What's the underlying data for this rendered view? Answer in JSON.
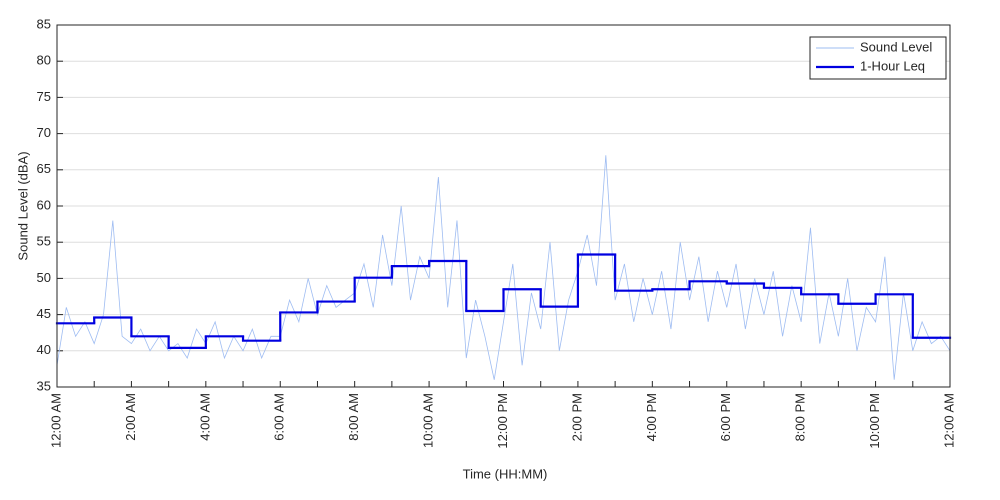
{
  "chart_data": {
    "type": "line",
    "xlabel": "Time (HH:MM)",
    "ylabel": "Sound Level (dBA)",
    "xlim": [
      0,
      24
    ],
    "ylim": [
      35,
      85
    ],
    "xticks": [
      {
        "value": 0,
        "label": "12:00 AM"
      },
      {
        "value": 1,
        "label": null
      },
      {
        "value": 2,
        "label": "2:00 AM"
      },
      {
        "value": 3,
        "label": null
      },
      {
        "value": 4,
        "label": "4:00 AM"
      },
      {
        "value": 5,
        "label": null
      },
      {
        "value": 6,
        "label": "6:00 AM"
      },
      {
        "value": 7,
        "label": null
      },
      {
        "value": 8,
        "label": "8:00 AM"
      },
      {
        "value": 9,
        "label": null
      },
      {
        "value": 10,
        "label": "10:00 AM"
      },
      {
        "value": 11,
        "label": null
      },
      {
        "value": 12,
        "label": "12:00 PM"
      },
      {
        "value": 13,
        "label": null
      },
      {
        "value": 14,
        "label": "2:00 PM"
      },
      {
        "value": 15,
        "label": null
      },
      {
        "value": 16,
        "label": "4:00 PM"
      },
      {
        "value": 17,
        "label": null
      },
      {
        "value": 18,
        "label": "6:00 PM"
      },
      {
        "value": 19,
        "label": null
      },
      {
        "value": 20,
        "label": "8:00 PM"
      },
      {
        "value": 21,
        "label": null
      },
      {
        "value": 22,
        "label": "10:00 PM"
      },
      {
        "value": 23,
        "label": null
      },
      {
        "value": 24,
        "label": "12:00 AM"
      }
    ],
    "yticks": [
      35,
      40,
      45,
      50,
      55,
      60,
      65,
      70,
      75,
      80,
      85
    ],
    "grid": true,
    "legend": "upper right",
    "series": [
      {
        "name": "Sound Level",
        "color": "#9ebcf2",
        "style": "line",
        "x": [
          0,
          0.25,
          0.5,
          0.75,
          1,
          1.25,
          1.5,
          1.75,
          2,
          2.25,
          2.5,
          2.75,
          3,
          3.25,
          3.5,
          3.75,
          4,
          4.25,
          4.5,
          4.75,
          5,
          5.25,
          5.5,
          5.75,
          6,
          6.25,
          6.5,
          6.75,
          7,
          7.25,
          7.5,
          7.75,
          8,
          8.25,
          8.5,
          8.75,
          9,
          9.25,
          9.5,
          9.75,
          10,
          10.25,
          10.5,
          10.75,
          11,
          11.25,
          11.5,
          11.75,
          12,
          12.25,
          12.5,
          12.75,
          13,
          13.25,
          13.5,
          13.75,
          14,
          14.25,
          14.5,
          14.75,
          15,
          15.25,
          15.5,
          15.75,
          16,
          16.25,
          16.5,
          16.75,
          17,
          17.25,
          17.5,
          17.75,
          18,
          18.25,
          18.5,
          18.75,
          19,
          19.25,
          19.5,
          19.75,
          20,
          20.25,
          20.5,
          20.75,
          21,
          21.25,
          21.5,
          21.75,
          22,
          22.25,
          22.5,
          22.75,
          23,
          23.25,
          23.5,
          23.75,
          24
        ],
        "values": [
          38,
          46,
          42,
          44,
          41,
          45,
          58,
          42,
          41,
          43,
          40,
          42,
          40,
          41,
          39,
          43,
          41,
          44,
          39,
          42,
          40,
          43,
          39,
          42,
          42,
          47,
          44,
          50,
          45,
          49,
          46,
          47,
          48,
          52,
          46,
          56,
          49,
          60,
          47,
          53,
          50,
          64,
          46,
          58,
          39,
          47,
          42,
          36,
          44,
          52,
          38,
          48,
          43,
          55,
          40,
          47,
          51,
          56,
          49,
          67,
          47,
          52,
          44,
          50,
          45,
          51,
          43,
          55,
          47,
          53,
          44,
          51,
          46,
          52,
          43,
          50,
          45,
          51,
          42,
          49,
          44,
          57,
          41,
          48,
          42,
          50,
          40,
          46,
          44,
          53,
          36,
          48,
          40,
          44,
          41,
          42,
          40
        ]
      },
      {
        "name": "1-Hour Leq",
        "color": "#0000e0",
        "style": "step",
        "x": [
          0,
          1,
          2,
          3,
          4,
          5,
          6,
          7,
          8,
          9,
          10,
          11,
          12,
          13,
          14,
          15,
          16,
          17,
          18,
          19,
          20,
          21,
          22,
          23
        ],
        "values": [
          43.8,
          44.6,
          42.0,
          40.4,
          42.0,
          41.4,
          45.3,
          46.8,
          50.1,
          51.7,
          52.4,
          45.5,
          48.5,
          46.1,
          53.3,
          48.3,
          48.5,
          49.6,
          49.3,
          48.7,
          47.8,
          46.5,
          47.8,
          41.8
        ]
      }
    ]
  }
}
